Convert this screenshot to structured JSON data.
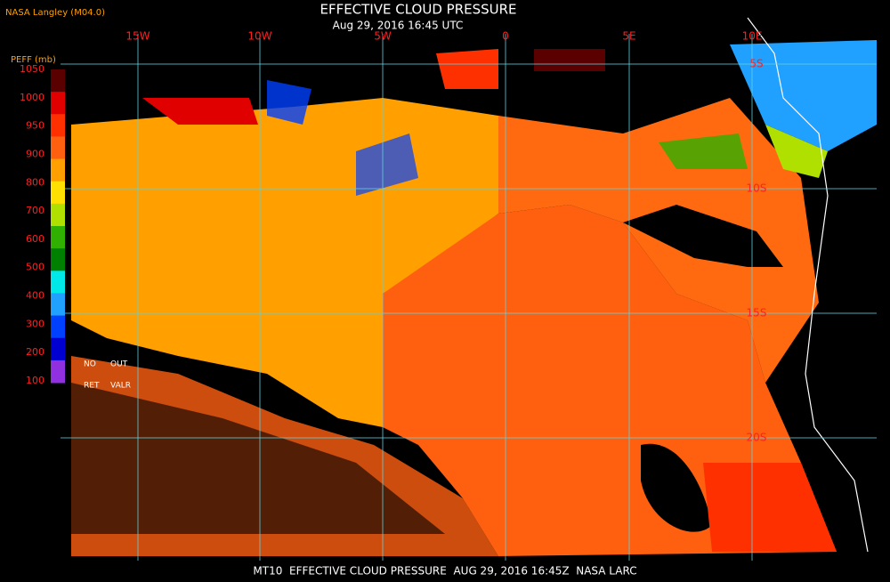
{
  "header": {
    "source": "NASA Langley (M04.0)",
    "title": "EFFECTIVE CLOUD PRESSURE",
    "subtitle": "Aug 29, 2016 16:45 UTC"
  },
  "legend": {
    "title": "PEFF (mb)",
    "ticks": [
      1050,
      1000,
      950,
      900,
      800,
      700,
      600,
      500,
      400,
      300,
      200,
      100
    ],
    "colors": [
      "#5a0000",
      "#e00000",
      "#ff3000",
      "#ff6010",
      "#ffa000",
      "#ffe000",
      "#b0e000",
      "#30b000",
      "#008000",
      "#00e8e8",
      "#20a0ff",
      "#0040ff",
      "#0000d0",
      "#9030e0"
    ],
    "no_ret": [
      "NO",
      "RET"
    ],
    "out_valr": [
      "OUT",
      "VALR"
    ]
  },
  "map": {
    "longitude_labels": [
      "15W",
      "10W",
      "5W",
      "0",
      "5E",
      "10E"
    ],
    "latitude_labels": [
      "5S",
      "10S",
      "15S",
      "20S"
    ]
  },
  "footer": "MT10  EFFECTIVE CLOUD PRESSURE  AUG 29, 2016 16:45Z  NASA LARC"
}
